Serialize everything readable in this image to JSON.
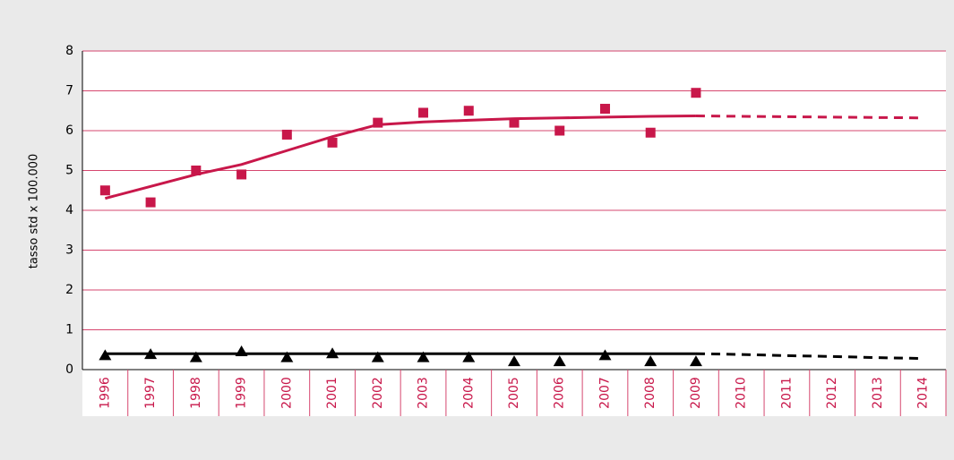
{
  "chart_data": {
    "type": "line",
    "y_label": "tasso std x 100.000",
    "categories": [
      "1996",
      "1997",
      "1998",
      "1999",
      "2000",
      "2001",
      "2002",
      "2003",
      "2004",
      "2005",
      "2006",
      "2007",
      "2008",
      "2009",
      "2010",
      "2011",
      "2012",
      "2013",
      "2014"
    ],
    "series": [
      {
        "color": "#c8174a",
        "marker": "square",
        "values": [
          4.5,
          4.2,
          5.0,
          4.9,
          5.9,
          5.7,
          6.2,
          6.45,
          6.5,
          6.2,
          6.0,
          6.55,
          5.95,
          6.95,
          null,
          null,
          null,
          null,
          null
        ]
      },
      {
        "color": "#c8174a",
        "marker": "none",
        "line": "solid",
        "values": [
          4.3,
          4.6,
          4.9,
          5.15,
          5.5,
          5.85,
          6.15,
          6.22,
          6.26,
          6.3,
          6.32,
          6.34,
          6.36,
          6.37,
          null,
          null,
          null,
          null,
          null
        ]
      },
      {
        "color": "#c8174a",
        "marker": "none",
        "line": "dashed",
        "values": [
          null,
          null,
          null,
          null,
          null,
          null,
          null,
          null,
          null,
          null,
          null,
          null,
          null,
          6.37,
          6.36,
          6.35,
          6.34,
          6.33,
          6.32
        ]
      },
      {
        "color": "#000000",
        "marker": "triangle",
        "values": [
          0.35,
          0.38,
          0.3,
          0.45,
          0.3,
          0.4,
          0.3,
          0.3,
          0.3,
          0.2,
          0.2,
          0.35,
          0.2,
          0.2,
          null,
          null,
          null,
          null,
          null
        ]
      },
      {
        "color": "#000000",
        "marker": "none",
        "line": "solid",
        "values": [
          0.4,
          0.4,
          0.4,
          0.4,
          0.4,
          0.4,
          0.4,
          0.4,
          0.4,
          0.4,
          0.4,
          0.4,
          0.4,
          0.4,
          null,
          null,
          null,
          null,
          null
        ]
      },
      {
        "color": "#000000",
        "marker": "none",
        "line": "dashed",
        "values": [
          null,
          null,
          null,
          null,
          null,
          null,
          null,
          null,
          null,
          null,
          null,
          null,
          null,
          0.4,
          0.38,
          0.35,
          0.33,
          0.3,
          0.28
        ]
      }
    ],
    "ylim": [
      0,
      8
    ],
    "yticks": [
      0,
      1,
      2,
      3,
      4,
      5,
      6,
      7,
      8
    ],
    "grid": true,
    "grid_color": "#d6476f",
    "xlabel_color": "#c8174a"
  }
}
